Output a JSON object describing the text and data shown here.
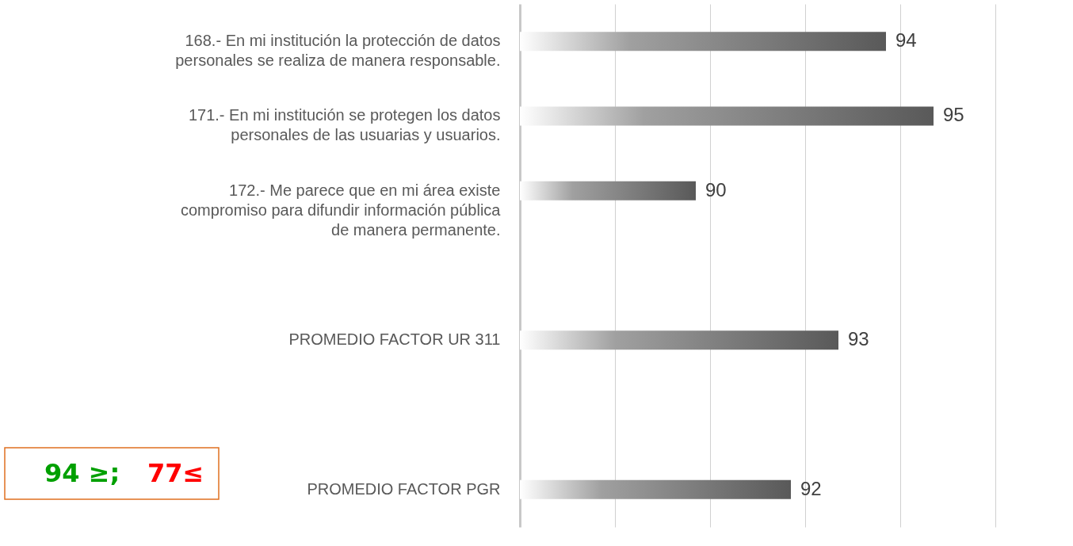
{
  "chart_data": {
    "type": "bar",
    "orientation": "horizontal",
    "categories": [
      "168.- En mi institución la protección de datos personales se realiza de manera responsable.",
      "171.- En mi institución se protegen los datos personales de las usuarias y usuarios.",
      "172.- Me parece que en mi área existe compromiso para difundir información pública de manera permanente.",
      null,
      "PROMEDIO FACTOR UR 311",
      null,
      "PROMEDIO FACTOR PGR"
    ],
    "series": [
      {
        "color": "#595959",
        "values": [
          94,
          95,
          90,
          null,
          93,
          null,
          92
        ]
      }
    ],
    "data_labels": true,
    "xlim": [
      86.3,
      96.3
    ],
    "xticks": [
      {
        "value": 88.3,
        "label": null
      },
      {
        "value": 90.3,
        "label": null
      },
      {
        "value": 92.3,
        "label": null
      },
      {
        "value": 94.3,
        "label": null
      },
      {
        "value": 96.3,
        "label": null
      }
    ],
    "grid": "x",
    "tick_labels": "y",
    "legend": false,
    "annotations": [
      "94 ≥;",
      "77≤"
    ]
  }
}
